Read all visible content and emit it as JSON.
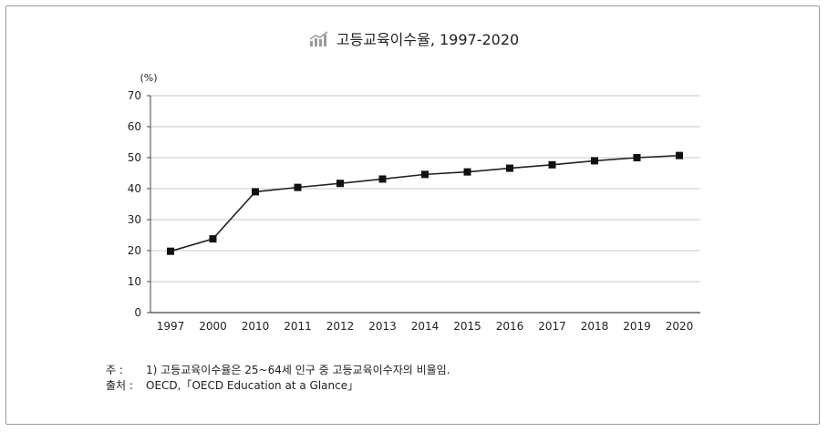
{
  "chart_data": {
    "type": "line",
    "title": "고등교육이수율, 1997-2020",
    "ylabel": "(%)",
    "xlabel": "",
    "categories": [
      "1997",
      "2000",
      "2010",
      "2011",
      "2012",
      "2013",
      "2014",
      "2015",
      "2016",
      "2017",
      "2018",
      "2019",
      "2020"
    ],
    "series": [
      {
        "values": [
          19.8,
          23.8,
          39,
          40.4,
          41.7,
          43.1,
          44.6,
          45.4,
          46.6,
          47.7,
          49,
          50,
          50.7
        ]
      }
    ],
    "ylim": [
      0,
      70
    ],
    "yticks": [
      "0",
      "10",
      "20",
      "30",
      "40",
      "50",
      "60",
      "70"
    ],
    "grid": true,
    "marker": "square",
    "line_color": "#222222"
  },
  "notes": {
    "note_label": "주  :",
    "note_text": "1) 고등교육이수율은 25~64세 인구 중 고등교육이수자의 비율임.",
    "source_label": "출처 :",
    "source_text": "OECD,「OECD Education at a Glance」"
  }
}
